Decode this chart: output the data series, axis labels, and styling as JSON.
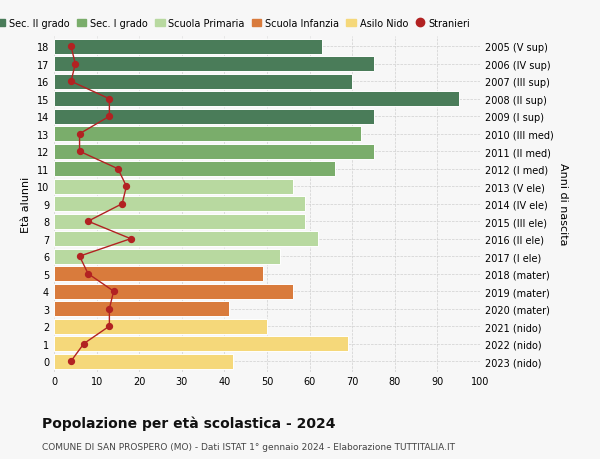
{
  "ages": [
    18,
    17,
    16,
    15,
    14,
    13,
    12,
    11,
    10,
    9,
    8,
    7,
    6,
    5,
    4,
    3,
    2,
    1,
    0
  ],
  "right_labels": [
    "2005 (V sup)",
    "2006 (IV sup)",
    "2007 (III sup)",
    "2008 (II sup)",
    "2009 (I sup)",
    "2010 (III med)",
    "2011 (II med)",
    "2012 (I med)",
    "2013 (V ele)",
    "2014 (IV ele)",
    "2015 (III ele)",
    "2016 (II ele)",
    "2017 (I ele)",
    "2018 (mater)",
    "2019 (mater)",
    "2020 (mater)",
    "2021 (nido)",
    "2022 (nido)",
    "2023 (nido)"
  ],
  "bar_values": [
    63,
    75,
    70,
    95,
    75,
    72,
    75,
    66,
    56,
    59,
    59,
    62,
    53,
    49,
    56,
    41,
    50,
    69,
    42
  ],
  "bar_colors": [
    "#4a7c59",
    "#4a7c59",
    "#4a7c59",
    "#4a7c59",
    "#4a7c59",
    "#7aad6b",
    "#7aad6b",
    "#7aad6b",
    "#b8d9a0",
    "#b8d9a0",
    "#b8d9a0",
    "#b8d9a0",
    "#b8d9a0",
    "#d97b3c",
    "#d97b3c",
    "#d97b3c",
    "#f5d87a",
    "#f5d87a",
    "#f5d87a"
  ],
  "stranieri_values": [
    4,
    5,
    4,
    13,
    13,
    6,
    6,
    15,
    17,
    16,
    8,
    18,
    6,
    8,
    14,
    13,
    13,
    7,
    4
  ],
  "stranieri_color": "#b22222",
  "legend": [
    {
      "label": "Sec. II grado",
      "color": "#4a7c59"
    },
    {
      "label": "Sec. I grado",
      "color": "#7aad6b"
    },
    {
      "label": "Scuola Primaria",
      "color": "#b8d9a0"
    },
    {
      "label": "Scuola Infanzia",
      "color": "#d97b3c"
    },
    {
      "label": "Asilo Nido",
      "color": "#f5d87a"
    },
    {
      "label": "Stranieri",
      "color": "#b22222"
    }
  ],
  "ylabel_left": "Età alunni",
  "ylabel_right": "Anni di nascita",
  "title": "Popolazione per età scolastica - 2024",
  "subtitle": "COMUNE DI SAN PROSPERO (MO) - Dati ISTAT 1° gennaio 2024 - Elaborazione TUTTITALIA.IT",
  "xlim": [
    0,
    100
  ],
  "xticks": [
    0,
    10,
    20,
    30,
    40,
    50,
    60,
    70,
    80,
    90,
    100
  ],
  "bg_color": "#f7f7f7",
  "grid_color": "#cccccc"
}
